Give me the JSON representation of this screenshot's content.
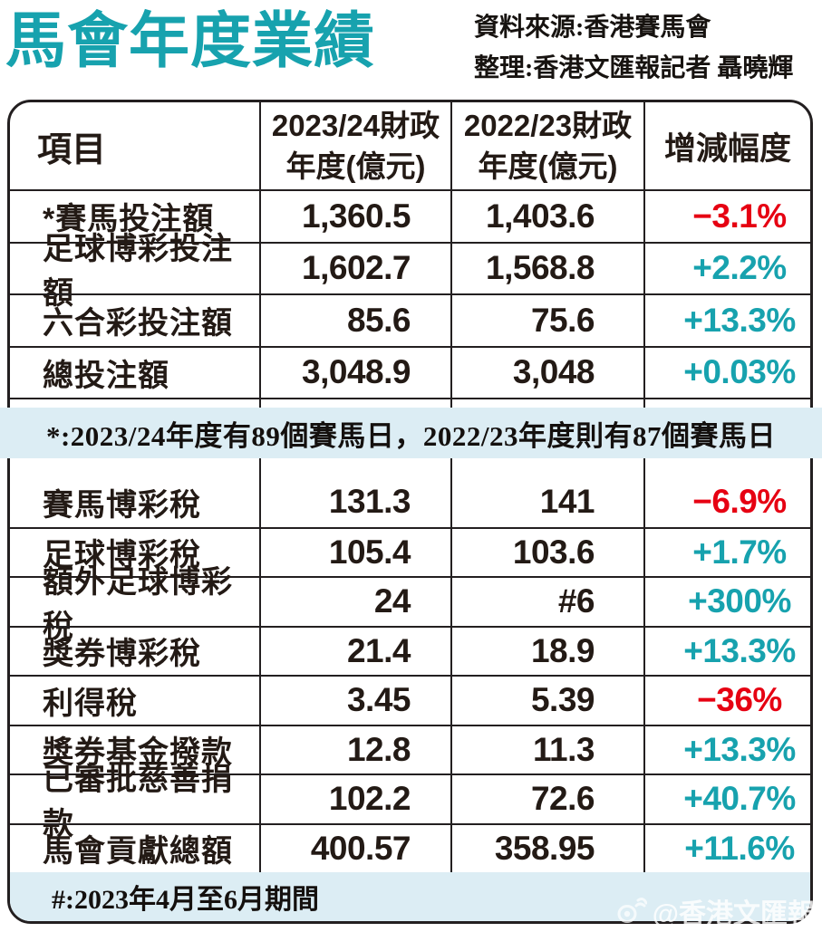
{
  "header": {
    "title": "馬會年度業績",
    "source_line1": "資料來源:香港賽馬會",
    "source_line2": "整理:香港文匯報記者 聶曉輝"
  },
  "colors": {
    "accent_teal": "#17A2AE",
    "negative_red": "#E60012",
    "note_band_bg": "#DCEDF4"
  },
  "table": {
    "headers": {
      "col1": "項目",
      "col2_line1": "2023/24財政",
      "col2_line2": "年度(億元)",
      "col3_line1": "2022/23財政",
      "col3_line2": "年度(億元)",
      "col4": "增減幅度"
    },
    "sections": [
      {
        "rows": [
          {
            "label": "*賽馬投注額",
            "fy_2023_24": "1,360.5",
            "fy_2022_23": "1,403.6",
            "change": "−3.1%",
            "direction": "down"
          },
          {
            "label": "足球博彩投注額",
            "fy_2023_24": "1,602.7",
            "fy_2022_23": "1,568.8",
            "change": "+2.2%",
            "direction": "up"
          },
          {
            "label": "六合彩投注額",
            "fy_2023_24": "85.6",
            "fy_2022_23": "75.6",
            "change": "+13.3%",
            "direction": "up"
          },
          {
            "label": "總投注額",
            "fy_2023_24": "3,048.9",
            "fy_2022_23": "3,048",
            "change": "+0.03%",
            "direction": "up"
          }
        ]
      },
      {
        "rows": [
          {
            "label": "賽馬博彩稅",
            "fy_2023_24": "131.3",
            "fy_2022_23": "141",
            "change": "−6.9%",
            "direction": "down"
          },
          {
            "label": "足球博彩稅",
            "fy_2023_24": "105.4",
            "fy_2022_23": "103.6",
            "change": "+1.7%",
            "direction": "up"
          },
          {
            "label": "額外足球博彩稅",
            "fy_2023_24": "24",
            "fy_2022_23": "#6",
            "change": "+300%",
            "direction": "up"
          },
          {
            "label": "獎券博彩稅",
            "fy_2023_24": "21.4",
            "fy_2022_23": "18.9",
            "change": "+13.3%",
            "direction": "up"
          },
          {
            "label": "利得稅",
            "fy_2023_24": "3.45",
            "fy_2022_23": "5.39",
            "change": "−36%",
            "direction": "down"
          },
          {
            "label": "獎券基金撥款",
            "fy_2023_24": "12.8",
            "fy_2022_23": "11.3",
            "change": "+13.3%",
            "direction": "up"
          },
          {
            "label": "已審批慈善捐款",
            "fy_2023_24": "102.2",
            "fy_2022_23": "72.6",
            "change": "+40.7%",
            "direction": "up"
          },
          {
            "label": "馬會貢獻總額",
            "fy_2023_24": "400.57",
            "fy_2022_23": "358.95",
            "change": "+11.6%",
            "direction": "up"
          }
        ]
      }
    ]
  },
  "notes": {
    "racedays": "*:2023/24年度有89個賽馬日，2022/23年度則有87個賽馬日",
    "period": "#:2023年4月至6月期間"
  },
  "watermark": {
    "handle": "@香港文匯報",
    "icon": "weibo-icon"
  },
  "chart_data": {
    "type": "table",
    "title": "馬會年度業績",
    "unit": "億元",
    "columns": [
      "項目",
      "2023/24財政年度(億元)",
      "2022/23財政年度(億元)",
      "增減幅度"
    ],
    "rows": [
      [
        "*賽馬投注額",
        1360.5,
        1403.6,
        "-3.1%"
      ],
      [
        "足球博彩投注額",
        1602.7,
        1568.8,
        "+2.2%"
      ],
      [
        "六合彩投注額",
        85.6,
        75.6,
        "+13.3%"
      ],
      [
        "總投注額",
        3048.9,
        3048,
        "+0.03%"
      ],
      [
        "賽馬博彩稅",
        131.3,
        141,
        "-6.9%"
      ],
      [
        "足球博彩稅",
        105.4,
        103.6,
        "+1.7%"
      ],
      [
        "額外足球博彩稅",
        24,
        "#6",
        "+300%"
      ],
      [
        "獎券博彩稅",
        21.4,
        18.9,
        "+13.3%"
      ],
      [
        "利得稅",
        3.45,
        5.39,
        "-36%"
      ],
      [
        "獎券基金撥款",
        12.8,
        11.3,
        "+13.3%"
      ],
      [
        "已審批慈善捐款",
        102.2,
        72.6,
        "+40.7%"
      ],
      [
        "馬會貢獻總額",
        400.57,
        358.95,
        "+11.6%"
      ]
    ],
    "footnotes": [
      "*:2023/24年度有89個賽馬日，2022/23年度則有87個賽馬日",
      "#:2023年4月至6月期間"
    ],
    "legend_position": "none",
    "grid": "table-borders"
  }
}
